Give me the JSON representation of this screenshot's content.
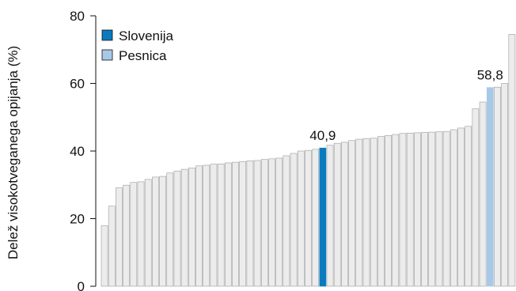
{
  "chart_data": {
    "type": "bar",
    "title": "",
    "xlabel": "",
    "ylabel": "Delež visokotveganega opijanja (%)",
    "ylim": [
      0,
      80
    ],
    "yticks": [
      0,
      20,
      40,
      60,
      80
    ],
    "grid": false,
    "legend_position": "top-left",
    "colors": {
      "default": "#ececec",
      "default_border": "#9a9a9a",
      "highlight_slovenija": "#0a7ac0",
      "highlight_pesnica": "#a8c8e8"
    },
    "legend": [
      {
        "label": "Slovenija",
        "color": "#0a7ac0"
      },
      {
        "label": "Pesnica",
        "color": "#a8c8e8"
      }
    ],
    "highlights": [
      {
        "index": 30,
        "label": "40,9",
        "series": "Slovenija"
      },
      {
        "index": 53,
        "label": "58,8",
        "series": "Pesnica"
      }
    ],
    "values": [
      17.9,
      23.7,
      29.1,
      29.9,
      30.7,
      30.9,
      31.6,
      32.3,
      32.5,
      33.5,
      34.1,
      34.6,
      35.0,
      35.6,
      35.8,
      36.1,
      36.2,
      36.5,
      36.7,
      36.9,
      37.1,
      37.2,
      37.5,
      37.7,
      37.9,
      38.6,
      39.3,
      40.0,
      40.2,
      40.5,
      40.9,
      41.7,
      42.3,
      42.6,
      43.1,
      43.5,
      43.7,
      43.8,
      44.3,
      44.6,
      44.9,
      45.2,
      45.3,
      45.4,
      45.5,
      45.6,
      45.7,
      45.8,
      46.3,
      46.8,
      47.3,
      52.5,
      54.5,
      58.8,
      58.9,
      60.0,
      74.5
    ]
  }
}
